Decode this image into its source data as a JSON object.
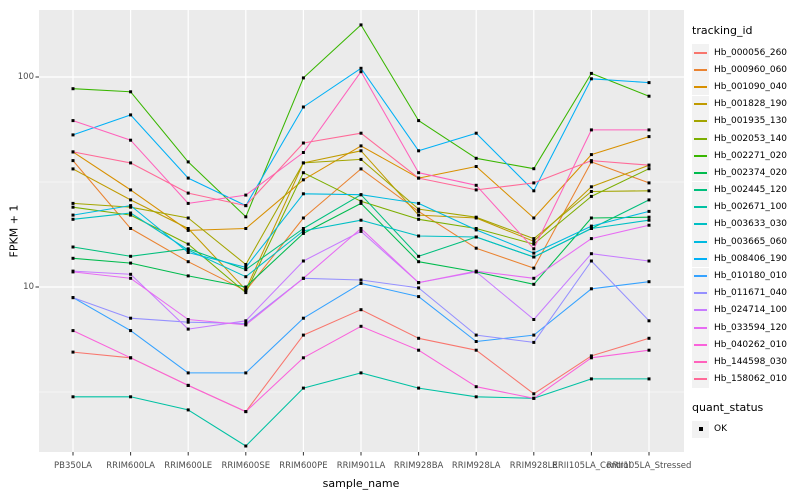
{
  "figure": {
    "y_axis": {
      "title": "FPKM + 1",
      "tick_labels": [
        "100",
        "10"
      ]
    },
    "x_axis": {
      "title": "sample_name"
    },
    "legend": {
      "tracking_title": "tracking_id",
      "quant_title": "quant_status",
      "quant_label": "OK"
    },
    "colors": {
      "panel_bg": "#EBEBEB",
      "grid": "#FFFFFF",
      "tick_text": "#4D4D4D",
      "point": "#000000"
    }
  },
  "chart_data": {
    "type": "line",
    "x_type": "categorical",
    "title": "",
    "xlabel": "sample_name",
    "ylabel": "FPKM + 1",
    "y_scale": "log10",
    "y_ticks": [
      100,
      10
    ],
    "y_minor_gridlines": [
      31.62,
      3.162
    ],
    "ylim": [
      1.6,
      210
    ],
    "grid": true,
    "legend_position": "right",
    "point_shape": "filled-black-square",
    "categories": [
      "PB350LA",
      "RRIM600LA",
      "RRIM600LE",
      "RRIM600SE",
      "RRIM600PE",
      "RRIM901LA",
      "RRIM928BA",
      "RRIM928LA",
      "RRIM928LE",
      "RRII105LA_Control",
      "RRII105LA_Stressed"
    ],
    "series": [
      {
        "name": "Hb_000056_260",
        "color": "#F8766D",
        "values": [
          4.9,
          4.6,
          3.4,
          2.55,
          5.9,
          7.8,
          5.7,
          5.0,
          3.1,
          4.7,
          5.7
        ]
      },
      {
        "name": "Hb_000960_060",
        "color": "#EA8331",
        "values": [
          40,
          19,
          13.2,
          9.6,
          21.3,
          36.5,
          22.9,
          15.3,
          12.3,
          39.4,
          31.3
        ]
      },
      {
        "name": "Hb_001090_040",
        "color": "#D89000",
        "values": [
          44,
          29,
          18.6,
          19,
          32.4,
          47,
          33,
          37.5,
          21.3,
          42.7,
          52
        ]
      },
      {
        "name": "Hb_001828_190",
        "color": "#C09B00",
        "values": [
          36.5,
          26,
          19,
          9.7,
          39,
          44.5,
          22,
          21.3,
          16.5,
          30,
          38
        ]
      },
      {
        "name": "Hb_001935_130",
        "color": "#A3A500",
        "values": [
          25,
          24,
          21.3,
          12.8,
          39,
          40.5,
          23.5,
          21.5,
          17,
          28.5,
          28.7
        ]
      },
      {
        "name": "Hb_002053_140",
        "color": "#7CAE00",
        "values": [
          24,
          22,
          16,
          9.4,
          35,
          25.6,
          21,
          19,
          16,
          27,
          36.6
        ]
      },
      {
        "name": "Hb_002271_020",
        "color": "#39B600",
        "values": [
          88,
          85,
          39.4,
          21.6,
          99,
          177,
          62,
          41,
          36.6,
          104,
          81
        ]
      },
      {
        "name": "Hb_002374_020",
        "color": "#00BB4E",
        "values": [
          13.7,
          13,
          11.3,
          10,
          18,
          25,
          13.2,
          11.8,
          10.3,
          21.3,
          21.5
        ]
      },
      {
        "name": "Hb_002445_120",
        "color": "#00BF7D",
        "values": [
          15.5,
          14,
          15.2,
          12.1,
          19,
          27.5,
          14,
          17.3,
          13.9,
          19,
          26
        ]
      },
      {
        "name": "Hb_002671_100",
        "color": "#00C1A3",
        "values": [
          3.0,
          3.0,
          2.6,
          1.75,
          3.3,
          3.9,
          3.3,
          3.0,
          2.95,
          3.65,
          3.65
        ]
      },
      {
        "name": "Hb_003633_030",
        "color": "#00BFC4",
        "values": [
          21,
          22.5,
          15,
          11.2,
          18.5,
          20.8,
          17.5,
          17.3,
          13.9,
          19,
          20.8
        ]
      },
      {
        "name": "Hb_003665_060",
        "color": "#00BAE0",
        "values": [
          22,
          24.4,
          14.6,
          12.4,
          27.8,
          27.5,
          25,
          18.7,
          14.5,
          19.5,
          22.9
        ]
      },
      {
        "name": "Hb_008406_190",
        "color": "#00B0F6",
        "values": [
          53,
          66,
          33,
          24.4,
          72,
          110,
          44.5,
          54,
          28.7,
          98,
          94
        ]
      },
      {
        "name": "Hb_010180_010",
        "color": "#35A2FF",
        "values": [
          8.9,
          6.2,
          3.9,
          3.9,
          7.1,
          10.4,
          9.0,
          5.5,
          5.9,
          9.8,
          10.6
        ]
      },
      {
        "name": "Hb_011671_040",
        "color": "#9590FF",
        "values": [
          8.9,
          7.1,
          6.8,
          6.7,
          11,
          10.8,
          9.9,
          5.9,
          5.45,
          13.3,
          6.9
        ]
      },
      {
        "name": "Hb_024714_100",
        "color": "#C77CFF",
        "values": [
          11.9,
          11.5,
          6.3,
          6.9,
          13.3,
          18.4,
          10.5,
          11.8,
          7.0,
          14.4,
          13.3
        ]
      },
      {
        "name": "Hb_033594_120",
        "color": "#E76BF3",
        "values": [
          11.8,
          11,
          7.0,
          6.6,
          11,
          19,
          10.5,
          11.9,
          11,
          17,
          19.7
        ]
      },
      {
        "name": "Hb_040262_010",
        "color": "#FA62DB",
        "values": [
          6.2,
          4.6,
          3.4,
          2.55,
          4.6,
          6.5,
          5.0,
          3.35,
          2.95,
          4.6,
          5.0
        ]
      },
      {
        "name": "Hb_144598_030",
        "color": "#FF62BC",
        "values": [
          62,
          50,
          25,
          27.4,
          43.7,
          106,
          35,
          30.5,
          15.2,
          56,
          56
        ]
      },
      {
        "name": "Hb_158062_010",
        "color": "#FF6A98",
        "values": [
          44,
          39,
          28,
          24.4,
          48.5,
          54,
          33,
          29,
          31.3,
          40,
          38
        ]
      }
    ]
  }
}
